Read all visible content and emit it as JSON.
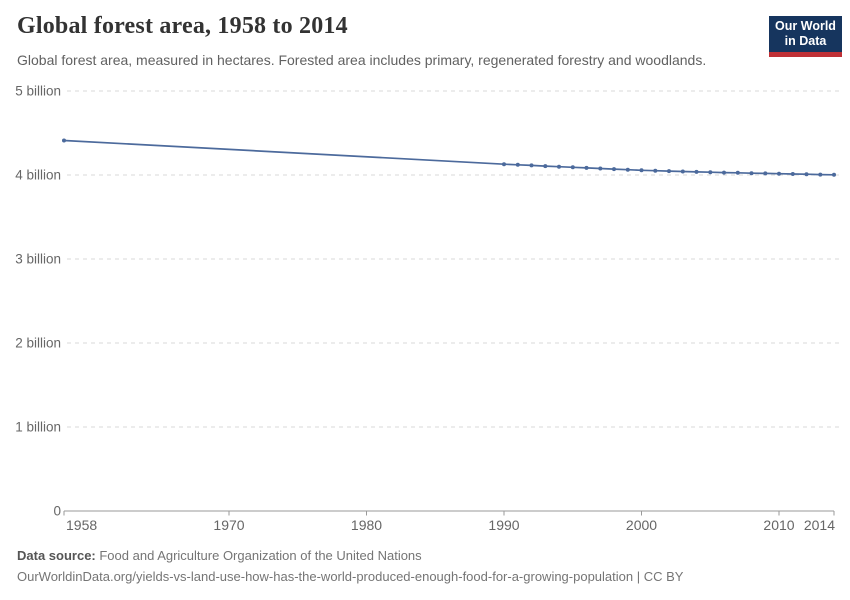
{
  "header": {
    "title": "Global forest area, 1958 to 2014",
    "subtitle": "Global forest area, measured in hectares. Forested area includes primary, regenerated forestry and woodlands.",
    "logo": {
      "line1": "Our World",
      "line2": "in Data",
      "bg_color": "#16355e",
      "accent_color": "#bf3036"
    }
  },
  "chart_data": {
    "type": "line",
    "title": "Global forest area, 1958 to 2014",
    "xlabel": "",
    "ylabel": "",
    "unit": "hectares",
    "xlim": [
      1958,
      2014
    ],
    "ylim_billions": [
      0,
      5
    ],
    "grid": "horizontal-dashed",
    "legend_position": "none",
    "line_color": "#4c6a9c",
    "x_axis": {
      "ticks": [
        {
          "value": 1958,
          "label": "1958"
        },
        {
          "value": 1970,
          "label": "1970"
        },
        {
          "value": 1980,
          "label": "1980"
        },
        {
          "value": 1990,
          "label": "1990"
        },
        {
          "value": 2000,
          "label": "2000"
        },
        {
          "value": 2010,
          "label": "2010"
        },
        {
          "value": 2014,
          "label": "2014"
        }
      ]
    },
    "y_axis": {
      "ticks": [
        {
          "value_billions": 5,
          "label": "5 billion"
        },
        {
          "value_billions": 4,
          "label": "4 billion"
        },
        {
          "value_billions": 3,
          "label": "3 billion"
        },
        {
          "value_billions": 2,
          "label": "2 billion"
        },
        {
          "value_billions": 1,
          "label": "1 billion"
        },
        {
          "value_billions": 0,
          "label": "0"
        }
      ]
    },
    "series": [
      {
        "name": "Global forest area",
        "color": "#4c6a9c",
        "points_year_billionha": [
          [
            1958,
            4.411
          ],
          [
            1990,
            4.128
          ],
          [
            1991,
            4.121
          ],
          [
            1992,
            4.114
          ],
          [
            1993,
            4.106
          ],
          [
            1994,
            4.099
          ],
          [
            1995,
            4.092
          ],
          [
            1996,
            4.085
          ],
          [
            1997,
            4.077
          ],
          [
            1998,
            4.07
          ],
          [
            1999,
            4.063
          ],
          [
            2000,
            4.056
          ],
          [
            2001,
            4.051
          ],
          [
            2002,
            4.047
          ],
          [
            2003,
            4.042
          ],
          [
            2004,
            4.037
          ],
          [
            2005,
            4.033
          ],
          [
            2006,
            4.029
          ],
          [
            2007,
            4.026
          ],
          [
            2008,
            4.022
          ],
          [
            2009,
            4.019
          ],
          [
            2010,
            4.016
          ],
          [
            2011,
            4.012
          ],
          [
            2012,
            4.009
          ],
          [
            2013,
            4.005
          ],
          [
            2014,
            4.002
          ]
        ]
      }
    ]
  },
  "footer": {
    "data_source_label": "Data source:",
    "data_source_value": " Food and Agriculture Organization of the United Nations",
    "link": "OurWorldinData.org/yields-vs-land-use-how-has-the-world-produced-enough-food-for-a-growing-population",
    "license": " | CC BY"
  }
}
